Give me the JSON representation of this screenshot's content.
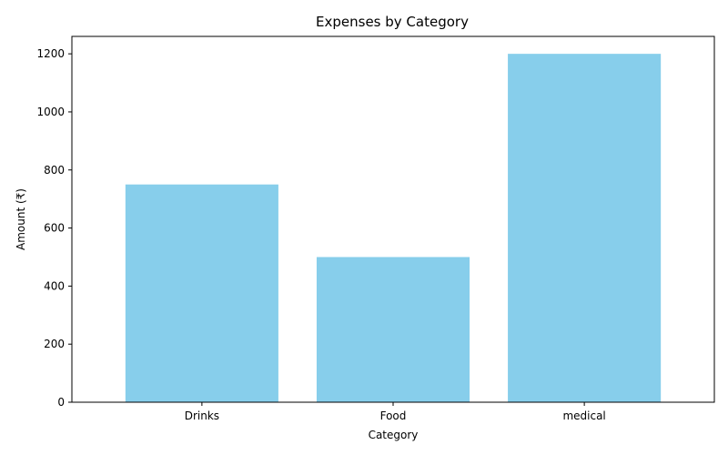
{
  "colors": {
    "bar": "#87ceeb",
    "axis": "#000000",
    "background": "#ffffff"
  },
  "chart_data": {
    "type": "bar",
    "title": "Expenses by Category",
    "xlabel": "Category",
    "ylabel": "Amount (₹)",
    "categories": [
      "Drinks",
      "Food",
      "medical"
    ],
    "values": [
      750,
      500,
      1200
    ],
    "ylim": [
      0,
      1260
    ],
    "yticks": [
      0,
      200,
      400,
      600,
      800,
      1000,
      1200
    ],
    "grid": false,
    "legend": "none"
  }
}
